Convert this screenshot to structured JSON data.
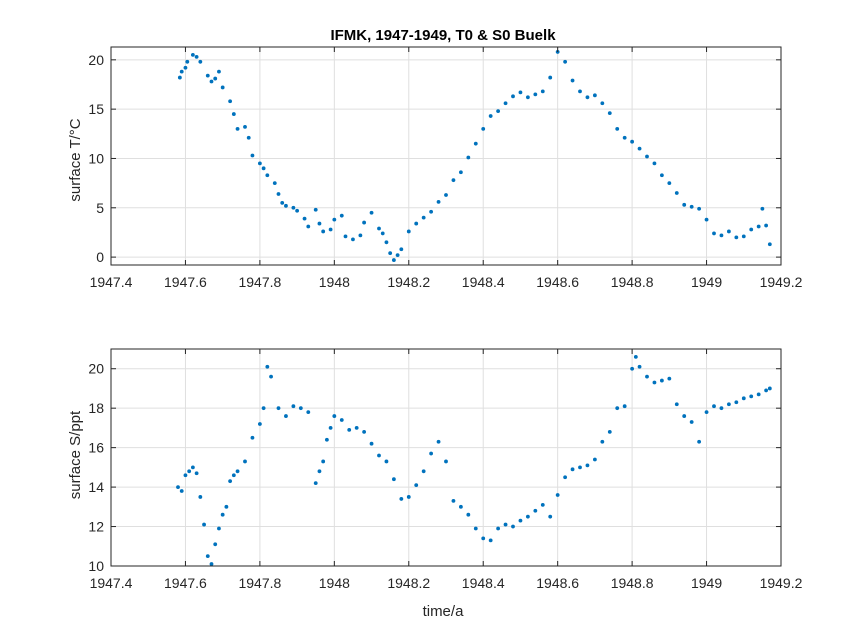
{
  "chart_data": [
    {
      "type": "scatter",
      "title": "IFMK, 1947-1949, T0 & S0 Buelk",
      "xlabel": "",
      "ylabel": "surface T/°C",
      "xlim": [
        1947.4,
        1949.2
      ],
      "ylim": [
        -0.8,
        21.3
      ],
      "xticks": [
        1947.4,
        1947.6,
        1947.8,
        1948,
        1948.2,
        1948.4,
        1948.6,
        1948.8,
        1949,
        1949.2
      ],
      "xtick_labels": [
        "1947.4",
        "1947.6",
        "1947.8",
        "1948",
        "1948.2",
        "1948.4",
        "1948.6",
        "1948.8",
        "1949",
        "1949.2"
      ],
      "yticks": [
        0,
        5,
        10,
        15,
        20
      ],
      "ytick_labels": [
        "0",
        "5",
        "10",
        "15",
        "20"
      ],
      "grid": true,
      "color": "#0072BD",
      "series": [
        {
          "x": [
            1947.585,
            1947.59,
            1947.6,
            1947.605,
            1947.62,
            1947.63,
            1947.64,
            1947.66,
            1947.67,
            1947.68,
            1947.69,
            1947.7,
            1947.72,
            1947.73,
            1947.74,
            1947.76,
            1947.77,
            1947.78,
            1947.8,
            1947.81,
            1947.82,
            1947.84,
            1947.85,
            1947.86,
            1947.87,
            1947.89,
            1947.9,
            1947.92,
            1947.93,
            1947.95,
            1947.96,
            1947.97,
            1947.99,
            1948.0,
            1948.02,
            1948.03,
            1948.05,
            1948.07,
            1948.08,
            1948.1,
            1948.12,
            1948.13,
            1948.14,
            1948.15,
            1948.16,
            1948.17,
            1948.18,
            1948.2,
            1948.22,
            1948.24,
            1948.26,
            1948.28,
            1948.3,
            1948.32,
            1948.34,
            1948.36,
            1948.38,
            1948.4,
            1948.42,
            1948.44,
            1948.46,
            1948.48,
            1948.5,
            1948.52,
            1948.54,
            1948.56,
            1948.58,
            1948.6,
            1948.62,
            1948.64,
            1948.66,
            1948.68,
            1948.7,
            1948.72,
            1948.74,
            1948.76,
            1948.78,
            1948.8,
            1948.82,
            1948.84,
            1948.86,
            1948.88,
            1948.9,
            1948.92,
            1948.94,
            1948.96,
            1948.98,
            1949.0,
            1949.02,
            1949.04,
            1949.06,
            1949.08,
            1949.1,
            1949.12,
            1949.14,
            1949.15,
            1949.16,
            1949.17
          ],
          "y": [
            18.2,
            18.8,
            19.2,
            19.8,
            20.5,
            20.3,
            19.8,
            18.4,
            17.8,
            18.1,
            18.8,
            17.2,
            15.8,
            14.5,
            13.0,
            13.2,
            12.1,
            10.3,
            9.5,
            9.0,
            8.3,
            7.5,
            6.4,
            5.5,
            5.2,
            5.0,
            4.7,
            3.9,
            3.1,
            4.8,
            3.4,
            2.6,
            2.8,
            3.8,
            4.2,
            2.1,
            1.8,
            2.2,
            3.5,
            4.5,
            2.9,
            2.4,
            1.5,
            0.4,
            -0.3,
            0.2,
            0.8,
            2.6,
            3.4,
            4.0,
            4.6,
            5.6,
            6.3,
            7.8,
            8.6,
            10.1,
            11.5,
            13.0,
            14.3,
            14.8,
            15.6,
            16.3,
            16.7,
            16.2,
            16.5,
            16.8,
            18.2,
            20.8,
            19.8,
            17.9,
            16.8,
            16.2,
            16.4,
            15.6,
            14.6,
            13.0,
            12.1,
            11.7,
            11.0,
            10.2,
            9.5,
            8.3,
            7.5,
            6.5,
            5.3,
            5.1,
            4.9,
            3.8,
            2.4,
            2.2,
            2.6,
            2.0,
            2.1,
            2.8,
            3.1,
            4.9,
            3.2,
            1.3
          ]
        }
      ]
    },
    {
      "type": "scatter",
      "title": "",
      "xlabel": "time/a",
      "ylabel": "surface S/ppt",
      "xlim": [
        1947.4,
        1949.2
      ],
      "ylim": [
        10,
        21
      ],
      "xticks": [
        1947.4,
        1947.6,
        1947.8,
        1948,
        1948.2,
        1948.4,
        1948.6,
        1948.8,
        1949,
        1949.2
      ],
      "xtick_labels": [
        "1947.4",
        "1947.6",
        "1947.8",
        "1948",
        "1948.2",
        "1948.4",
        "1948.6",
        "1948.8",
        "1949",
        "1949.2"
      ],
      "yticks": [
        10,
        12,
        14,
        16,
        18,
        20
      ],
      "ytick_labels": [
        "10",
        "12",
        "14",
        "16",
        "18",
        "20"
      ],
      "grid": true,
      "color": "#0072BD",
      "series": [
        {
          "x": [
            1947.58,
            1947.59,
            1947.6,
            1947.61,
            1947.62,
            1947.63,
            1947.64,
            1947.65,
            1947.66,
            1947.67,
            1947.68,
            1947.69,
            1947.7,
            1947.71,
            1947.72,
            1947.73,
            1947.74,
            1947.76,
            1947.78,
            1947.8,
            1947.81,
            1947.82,
            1947.83,
            1947.85,
            1947.87,
            1947.89,
            1947.91,
            1947.93,
            1947.95,
            1947.96,
            1947.97,
            1947.98,
            1947.99,
            1948.0,
            1948.02,
            1948.04,
            1948.06,
            1948.08,
            1948.1,
            1948.12,
            1948.14,
            1948.16,
            1948.18,
            1948.2,
            1948.22,
            1948.24,
            1948.26,
            1948.28,
            1948.3,
            1948.32,
            1948.34,
            1948.36,
            1948.38,
            1948.4,
            1948.42,
            1948.44,
            1948.46,
            1948.48,
            1948.5,
            1948.52,
            1948.54,
            1948.56,
            1948.58,
            1948.6,
            1948.62,
            1948.64,
            1948.66,
            1948.68,
            1948.7,
            1948.72,
            1948.74,
            1948.76,
            1948.78,
            1948.8,
            1948.81,
            1948.82,
            1948.84,
            1948.86,
            1948.88,
            1948.9,
            1948.92,
            1948.94,
            1948.96,
            1948.98,
            1949.0,
            1949.02,
            1949.04,
            1949.06,
            1949.08,
            1949.1,
            1949.12,
            1949.14,
            1949.16,
            1949.17
          ],
          "y": [
            14.0,
            13.8,
            14.6,
            14.8,
            15.0,
            14.7,
            13.5,
            12.1,
            10.5,
            10.1,
            11.1,
            11.9,
            12.6,
            13.0,
            14.3,
            14.6,
            14.8,
            15.3,
            16.5,
            17.2,
            18.0,
            20.1,
            19.6,
            18.0,
            17.6,
            18.1,
            18.0,
            17.8,
            14.2,
            14.8,
            15.3,
            16.4,
            17.0,
            17.6,
            17.4,
            16.9,
            17.0,
            16.8,
            16.2,
            15.6,
            15.3,
            14.4,
            13.4,
            13.5,
            14.1,
            14.8,
            15.7,
            16.3,
            15.3,
            13.3,
            13.0,
            12.6,
            11.9,
            11.4,
            11.3,
            11.9,
            12.1,
            12.0,
            12.3,
            12.5,
            12.8,
            13.1,
            12.5,
            13.6,
            14.5,
            14.9,
            15.0,
            15.1,
            15.4,
            16.3,
            16.8,
            18.0,
            18.1,
            20.0,
            20.6,
            20.1,
            19.6,
            19.3,
            19.4,
            19.5,
            18.2,
            17.6,
            17.3,
            16.3,
            17.8,
            18.1,
            18.0,
            18.2,
            18.3,
            18.5,
            18.6,
            18.7,
            18.9,
            19.0
          ]
        }
      ]
    }
  ]
}
